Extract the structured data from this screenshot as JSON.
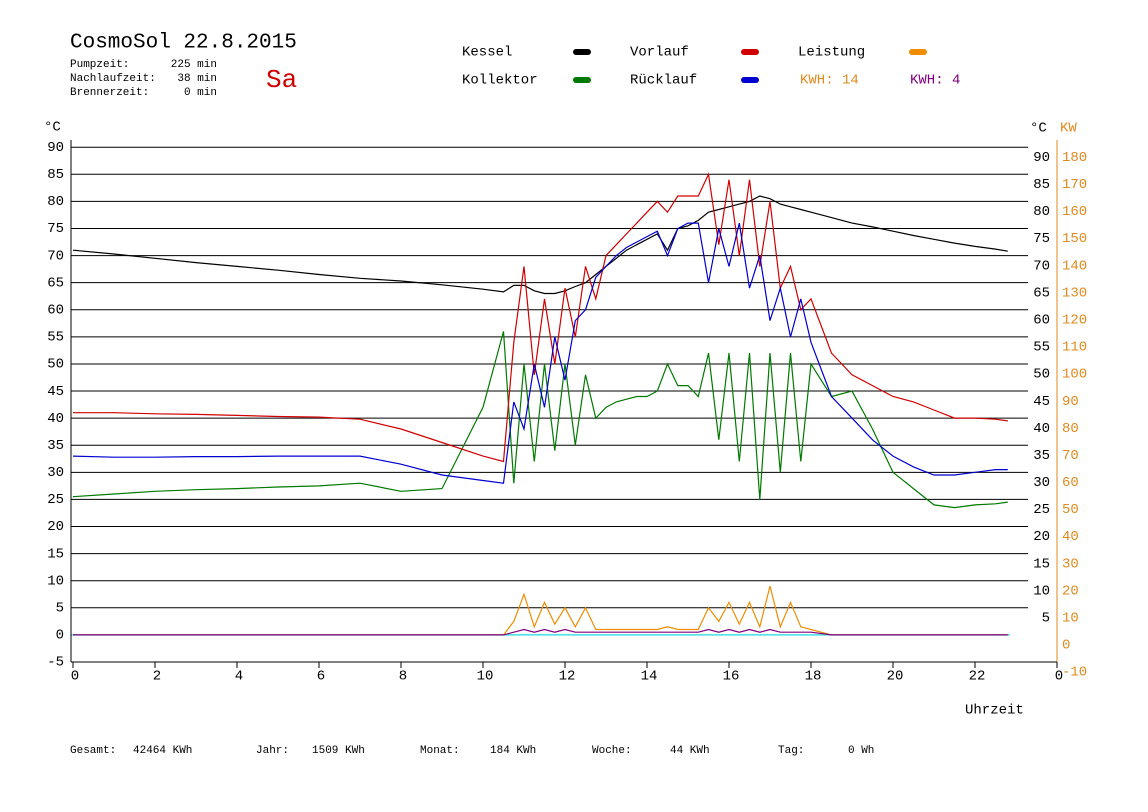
{
  "header": {
    "title": "CosmoSol 22.8.2015",
    "day": "Sa",
    "info": [
      {
        "label": "Pumpzeit:",
        "value": "225 min"
      },
      {
        "label": "Nachlaufzeit:",
        "value": "38 min"
      },
      {
        "label": "Brennerzeit:",
        "value": "0 min"
      }
    ]
  },
  "chart_data": {
    "type": "line",
    "y_label": "°C",
    "y2_unit_c": "°C",
    "y2_label": "KW",
    "x_label": "Uhrzeit",
    "xlim": [
      0,
      24
    ],
    "xticks": [
      0,
      2,
      4,
      6,
      8,
      10,
      12,
      14,
      16,
      18,
      20,
      22,
      {
        "value": 24,
        "label": "0"
      }
    ],
    "ylim": [
      -5,
      90
    ],
    "yticks": [
      -5,
      0,
      5,
      10,
      15,
      20,
      25,
      30,
      35,
      40,
      45,
      50,
      55,
      60,
      65,
      70,
      75,
      80,
      85,
      90
    ],
    "y_right_ticks": [
      5,
      10,
      15,
      20,
      25,
      30,
      35,
      40,
      45,
      50,
      55,
      60,
      65,
      70,
      75,
      80,
      85,
      90
    ],
    "y2lim": [
      -10,
      180
    ],
    "y2ticks": [
      -10,
      0,
      10,
      20,
      30,
      40,
      50,
      60,
      70,
      80,
      90,
      100,
      110,
      120,
      130,
      140,
      150,
      160,
      170,
      180
    ],
    "grid": true,
    "zero_line_color": "#40e0e0",
    "x": [
      0,
      1,
      2,
      3,
      4,
      5,
      6,
      7,
      8,
      9,
      10,
      10.5,
      10.75,
      11,
      11.25,
      11.5,
      11.75,
      12,
      12.25,
      12.5,
      12.75,
      13,
      13.25,
      13.5,
      13.75,
      14,
      14.25,
      14.5,
      14.75,
      15,
      15.25,
      15.5,
      15.75,
      16,
      16.25,
      16.5,
      16.75,
      17,
      17.25,
      17.5,
      17.75,
      18,
      18.5,
      19,
      19.5,
      20,
      20.5,
      21,
      21.5,
      22,
      22.5,
      22.8
    ],
    "series": [
      {
        "name": "Kessel",
        "color": "#000000",
        "values": [
          71,
          70.3,
          69.5,
          68.7,
          68,
          67.3,
          66.5,
          65.8,
          65.3,
          64.6,
          63.8,
          63.3,
          64.5,
          64.5,
          63.5,
          63,
          63,
          63.5,
          64.3,
          65,
          66.5,
          68,
          69.5,
          71,
          72,
          73,
          74,
          71,
          75,
          75.5,
          76.5,
          78,
          78.5,
          79,
          79.5,
          80,
          81,
          80.5,
          79.5,
          79,
          78.5,
          78,
          77,
          76,
          75.3,
          74.5,
          73.7,
          73,
          72.3,
          71.7,
          71.2,
          70.8
        ]
      },
      {
        "name": "Kollektor",
        "color": "#007a00",
        "values": [
          25.5,
          26,
          26.5,
          26.8,
          27,
          27.3,
          27.5,
          28,
          26.5,
          27,
          42,
          56,
          28,
          50,
          32,
          50,
          34,
          50,
          35,
          48,
          40,
          42,
          43,
          43.5,
          44,
          44,
          45,
          50,
          46,
          46,
          44,
          52,
          36,
          52,
          32,
          52,
          25,
          52,
          30,
          52,
          32,
          50,
          44,
          45,
          38,
          30,
          27,
          24,
          23.5,
          24,
          24.2,
          24.5
        ]
      },
      {
        "name": "Vorlauf",
        "color": "#d00000",
        "values": [
          41,
          41,
          40.8,
          40.7,
          40.5,
          40.3,
          40.2,
          39.8,
          38,
          35.5,
          33,
          32,
          54,
          68,
          48,
          62,
          50,
          64,
          55,
          68,
          62,
          70,
          72,
          74,
          76,
          78,
          80,
          78,
          81,
          81,
          81,
          85,
          72,
          84,
          70,
          84,
          68,
          80,
          64,
          68,
          60,
          62,
          52,
          48,
          46,
          44,
          43,
          41.5,
          40,
          40,
          39.8,
          39.5
        ]
      },
      {
        "name": "Rücklauf",
        "color": "#0000d0",
        "values": [
          33,
          32.8,
          32.8,
          32.9,
          32.9,
          33,
          33,
          33,
          31.5,
          29.5,
          28.5,
          28,
          43,
          38,
          50,
          42,
          55,
          47,
          58,
          60,
          66,
          68,
          70,
          71.5,
          72.5,
          73.5,
          74.5,
          70,
          75,
          76,
          76,
          65,
          75,
          68,
          76,
          64,
          70,
          58,
          64,
          55,
          62,
          54,
          44,
          40,
          36,
          33,
          31,
          29.5,
          29.5,
          30,
          30.5,
          30.5
        ]
      },
      {
        "name": "Leistung",
        "color": "#f08c00",
        "axis": "y2",
        "values": [
          0,
          0,
          0,
          0,
          0,
          0,
          0,
          0,
          0,
          0,
          0,
          0,
          5,
          15,
          3,
          12,
          4,
          10,
          3,
          10,
          2,
          2,
          2,
          2,
          2,
          2,
          2,
          3,
          2,
          2,
          2,
          10,
          5,
          12,
          4,
          12,
          3,
          18,
          3,
          12,
          3,
          2,
          0,
          0,
          0,
          0,
          0,
          0,
          0,
          0,
          0,
          0
        ]
      },
      {
        "color": "#800080",
        "axis": "y2",
        "values": [
          0,
          0,
          0,
          0,
          0,
          0,
          0,
          0,
          0,
          0,
          0,
          0,
          1,
          2,
          1,
          2,
          1,
          2,
          1,
          1,
          1,
          1,
          1,
          1,
          1,
          1,
          1,
          1,
          1,
          1,
          1,
          2,
          1,
          2,
          1,
          2,
          1,
          2,
          1,
          1,
          1,
          1,
          0,
          0,
          0,
          0,
          0,
          0,
          0,
          0,
          0,
          0
        ]
      }
    ],
    "kwh_labels": [
      {
        "text": "KWH: 14",
        "color": "#e08a1e"
      },
      {
        "text": "KWH: 4",
        "color": "#800080"
      }
    ]
  },
  "footer": [
    {
      "label": "Gesamt:",
      "value": "42464 KWh"
    },
    {
      "label": "Jahr:",
      "value": "1509 KWh"
    },
    {
      "label": "Monat:",
      "value": "184 KWh"
    },
    {
      "label": "Woche:",
      "value": "44 KWh"
    },
    {
      "label": "Tag:",
      "value": "0 Wh"
    }
  ]
}
